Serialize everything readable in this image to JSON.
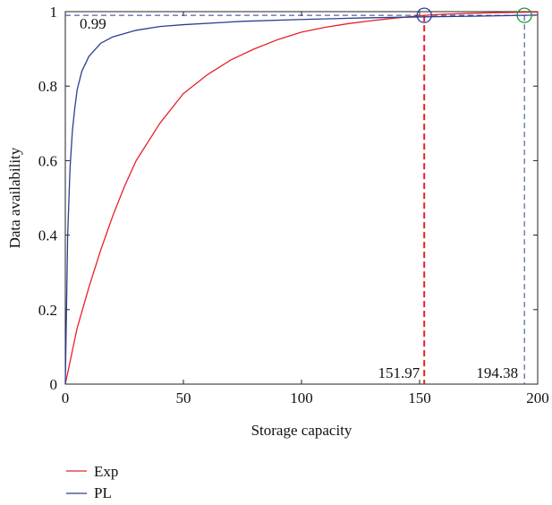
{
  "chart_data": {
    "type": "line",
    "title": "",
    "xlabel": "Storage capacity",
    "ylabel": "Data availability",
    "xlim": [
      0,
      200
    ],
    "ylim": [
      0,
      1
    ],
    "x_ticks": [
      0,
      50,
      100,
      150,
      200
    ],
    "y_ticks": [
      0,
      0.2,
      0.4,
      0.6,
      0.8,
      1
    ],
    "x_tick_labels": [
      "0",
      "50",
      "100",
      "150",
      "200"
    ],
    "y_tick_labels": [
      "0",
      "0.2",
      "0.4",
      "0.6",
      "0.8",
      "1"
    ],
    "grid": false,
    "legend_position": "bottom-left, below plot",
    "series": [
      {
        "name": "Exp",
        "color": "#e8202a",
        "x": [
          0,
          5,
          10,
          15,
          20,
          25,
          30,
          40,
          50,
          60,
          70,
          80,
          90,
          100,
          110,
          120,
          130,
          140,
          151.97,
          160,
          170,
          180,
          190,
          200
        ],
        "y": [
          0,
          0.15,
          0.26,
          0.36,
          0.45,
          0.53,
          0.6,
          0.7,
          0.78,
          0.83,
          0.87,
          0.9,
          0.925,
          0.945,
          0.958,
          0.968,
          0.976,
          0.983,
          0.99,
          0.993,
          0.995,
          0.997,
          0.998,
          0.999
        ]
      },
      {
        "name": "PL",
        "color": "#2b3f94",
        "x": [
          0,
          1,
          2,
          3,
          4,
          5,
          7,
          10,
          15,
          20,
          30,
          40,
          50,
          75,
          100,
          125,
          151.97,
          175,
          194.38,
          200
        ],
        "y": [
          0,
          0.4,
          0.58,
          0.68,
          0.74,
          0.79,
          0.84,
          0.88,
          0.915,
          0.932,
          0.95,
          0.96,
          0.965,
          0.974,
          0.979,
          0.983,
          0.986,
          0.988,
          0.99,
          0.991
        ]
      }
    ],
    "annotations": {
      "threshold_label": "0.99",
      "threshold_value": 0.99,
      "exp_marker_x": 151.97,
      "exp_marker_label": "151.97",
      "pl_marker_x": 194.38,
      "pl_marker_label": "194.38",
      "exp_marker_color": "#e8202a",
      "pl_marker_color": "#2b3f94",
      "threshold_line_color": "#2b3f94",
      "exp_circle_color": "#2b3f94",
      "pl_circle_color": "#1a9a3c"
    }
  }
}
